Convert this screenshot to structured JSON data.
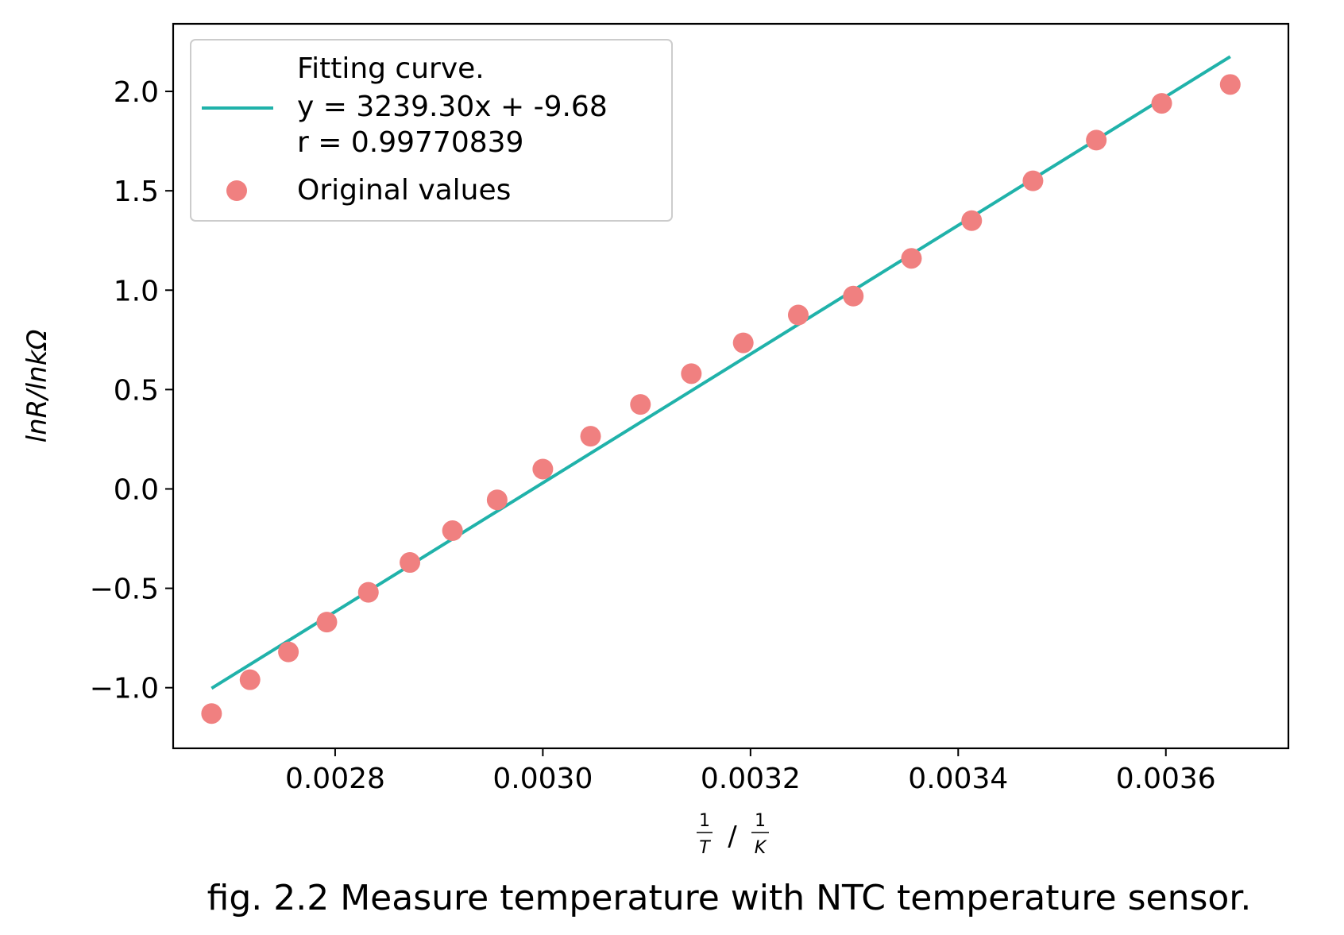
{
  "caption": "fig. 2.2 Measure temperature with NTC temperature sensor.",
  "chart_data": {
    "type": "scatter",
    "title": "",
    "ylabel": "lnR/lnkΩ",
    "xlabel": {
      "numerator_left": "1",
      "denominator_left": "T",
      "separator": "/",
      "numerator_right": "1",
      "denominator_right": "K"
    },
    "xlim": [
      0.002644,
      0.003718
    ],
    "ylim": [
      -1.305,
      2.34
    ],
    "grid": false,
    "legend_position": "top-left",
    "x_ticks": [
      0.0028,
      0.003,
      0.0032,
      0.0034,
      0.0036
    ],
    "x_tick_labels": [
      "0.0028",
      "0.0030",
      "0.0032",
      "0.0034",
      "0.0036"
    ],
    "y_ticks": [
      -1.0,
      -0.5,
      0.0,
      0.5,
      1.0,
      1.5,
      2.0
    ],
    "y_tick_labels": [
      "−1.0",
      "−0.5",
      "0.0",
      "0.5",
      "1.0",
      "1.5",
      "2.0"
    ],
    "series": [
      {
        "name": "Fitting curve.",
        "name_lines": [
          "Fitting curve.",
          "y = 3239.30x + -9.68",
          "r = 0.99770839"
        ],
        "kind": "line",
        "color": "#20b2aa",
        "x": [
          0.002681,
          0.003662
        ],
        "y": [
          -1.003,
          2.175
        ]
      },
      {
        "name": "Original values",
        "kind": "scatter",
        "color": "#f08080",
        "x": [
          0.002681,
          0.002718,
          0.002755,
          0.002792,
          0.002832,
          0.002872,
          0.002913,
          0.002956,
          0.003,
          0.003046,
          0.003094,
          0.003143,
          0.003193,
          0.003246,
          0.003299,
          0.003355,
          0.003413,
          0.003472,
          0.003533,
          0.003596,
          0.003662
        ],
        "y": [
          -1.13,
          -0.96,
          -0.82,
          -0.67,
          -0.52,
          -0.37,
          -0.21,
          -0.055,
          0.1,
          0.265,
          0.425,
          0.58,
          0.735,
          0.875,
          0.97,
          1.16,
          1.35,
          1.55,
          1.755,
          1.94,
          2.035
        ]
      }
    ]
  }
}
